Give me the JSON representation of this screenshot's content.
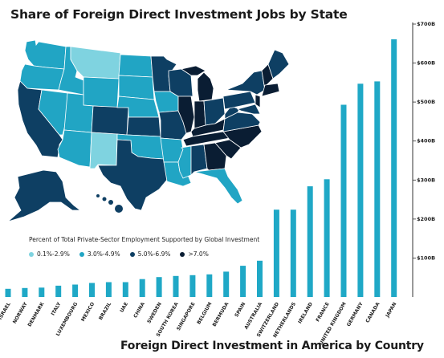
{
  "map": {
    "title": "Share of Foreign Direct Investment Jobs by State",
    "legend_title": "Percent of Total Private-Sector Employment Supported by Global Investment",
    "legend": [
      {
        "label": "0.1%-2.9%",
        "color": "#7fd3e0"
      },
      {
        "label": "3.0%-4.9%",
        "color": "#21a5c4"
      },
      {
        "label": "5.0%-6.9%",
        "color": "#0e3f63"
      },
      {
        "label": ">7.0%",
        "color": "#0a1d33"
      }
    ]
  },
  "chart_data": {
    "type": "bar",
    "title": "Foreign Direct Investment in America by Country",
    "categories": [
      "ISRAEL",
      "NORWAY",
      "DENMARK",
      "ITALY",
      "LUXEMBOURG",
      "MEXICO",
      "BRAZIL",
      "UAE",
      "CHINA",
      "SWEDEN",
      "SOUTH KOREA",
      "SINGAPORE",
      "BELGIUM",
      "BERMUDA",
      "SPAIN",
      "AUSTRALIA",
      "SWITZERLAND",
      "NETHERLANDS",
      "IRELAND",
      "FRANCE",
      "UNITED KINGDOM",
      "GERMANY",
      "CANADA",
      "JAPAN"
    ],
    "values": [
      21,
      23,
      24,
      29,
      32,
      36,
      38,
      38,
      46,
      51,
      54,
      56,
      58,
      65,
      80,
      93,
      224,
      224,
      284,
      302,
      493,
      547,
      553,
      661
    ],
    "ylim": [
      0,
      700
    ],
    "yticks": [
      100,
      200,
      300,
      400,
      500,
      600,
      700
    ],
    "ytick_labels": [
      "$100B",
      "$200B",
      "$300B",
      "$400B",
      "$500B",
      "$600B",
      "$700B"
    ],
    "bar_color": "#1fa8c6",
    "grid": false
  }
}
